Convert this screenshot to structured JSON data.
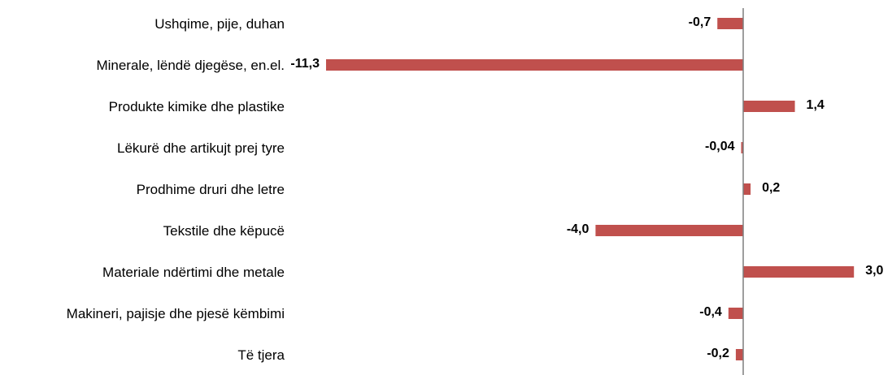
{
  "chart_data": {
    "type": "bar",
    "orientation": "horizontal",
    "categories": [
      "Ushqime, pije, duhan",
      "Minerale, lëndë djegëse, en.el.",
      "Produkte kimike dhe plastike",
      "Lëkurë dhe artikujt prej tyre",
      "Prodhime druri dhe letre",
      "Tekstile dhe këpucë",
      "Materiale ndërtimi dhe metale",
      "Makineri, pajisje dhe pjesë këmbimi",
      "Të tjera"
    ],
    "values": [
      -0.7,
      -11.3,
      1.4,
      -0.04,
      0.2,
      -4.0,
      3.0,
      -0.4,
      -0.2
    ],
    "value_labels": [
      "-0,7",
      "-11,3",
      "1,4",
      "-0,04",
      "0,2",
      "-4,0",
      "3,0",
      "-0,4",
      "-0,2"
    ],
    "xlim": [
      -11.3,
      3.0
    ],
    "title": "",
    "xlabel": "",
    "ylabel": "",
    "grid": false,
    "legend": "none",
    "bar_color": "#C0504D",
    "axis_color": "#7F7F7F"
  }
}
